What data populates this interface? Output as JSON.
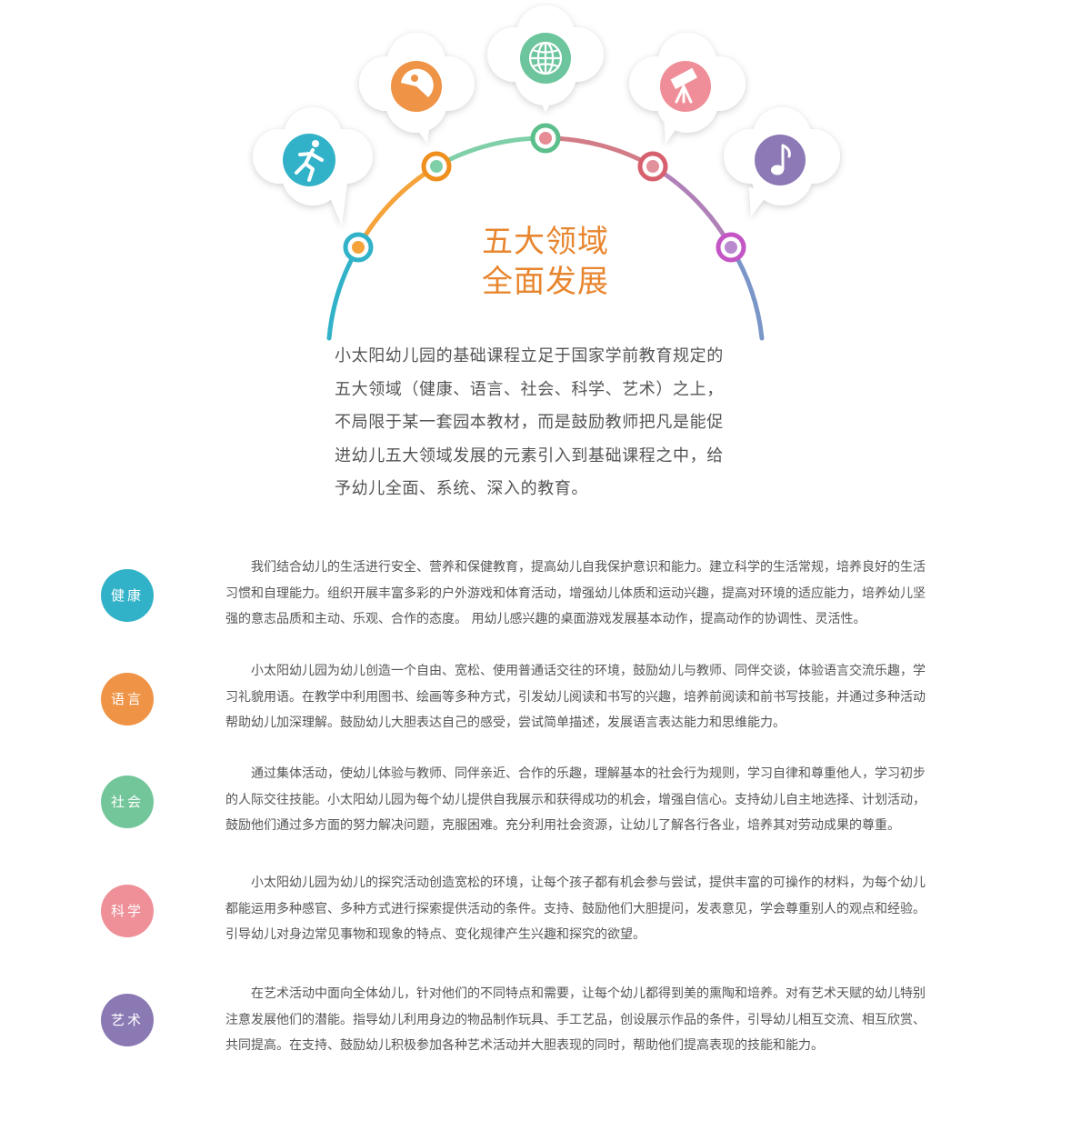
{
  "hero": {
    "title_line1": "五大领域",
    "title_line2": "全面发展"
  },
  "intro": {
    "lines": [
      "小太阳幼儿园的基础课程立足于国家学前教育规定的",
      "五大领域（健康、语言、社会、科学、艺术）之上，",
      "不局限于某一套园本教材，而是鼓励教师把凡是能促",
      "进幼儿五大领域发展的元素引入到基础课程之中，给",
      "予幼儿全面、系统、深入的教育。"
    ]
  },
  "clouds": [
    {
      "icon": "running-person-icon",
      "color": "#31b2c8"
    },
    {
      "icon": "pacman-face-icon",
      "color": "#ef9346"
    },
    {
      "icon": "globe-icon",
      "color": "#6cc59d"
    },
    {
      "icon": "telescope-icon",
      "color": "#ef8e98"
    },
    {
      "icon": "music-note-icon",
      "color": "#8c79b5"
    }
  ],
  "domains": [
    {
      "label": "健康",
      "color": "#31b2c8",
      "lines": [
        "我们结合幼儿的生活进行安全、营养和保健教育，提高幼儿自我保护意识和能力。建立科学的生活常规，培养良好的生活",
        "习惯和自理能力。组织开展丰富多彩的户外游戏和体育活动，增强幼儿体质和运动兴趣，提高对环境的适应能力，培养幼儿坚",
        "强的意志品质和主动、乐观、合作的态度。 用幼儿感兴趣的桌面游戏发展基本动作，提高动作的协调性、灵活性。"
      ]
    },
    {
      "label": "语言",
      "color": "#ef9346",
      "lines": [
        "小太阳幼儿园为幼儿创造一个自由、宽松、使用普通话交往的环境，鼓励幼儿与教师、同伴交谈，体验语言交流乐趣，学",
        "习礼貌用语。在教学中利用图书、绘画等多种方式，引发幼儿阅读和书写的兴趣，培养前阅读和前书写技能，并通过多种活动",
        "帮助幼儿加深理解。鼓励幼儿大胆表达自己的感受，尝试简单描述，发展语言表达能力和思维能力。"
      ]
    },
    {
      "label": "社会",
      "color": "#72c69a",
      "lines": [
        "通过集体活动，使幼儿体验与教师、同伴亲近、合作的乐趣，理解基本的社会行为规则，学习自律和尊重他人，学习初步",
        "的人际交往技能。小太阳幼儿园为每个幼儿提供自我展示和获得成功的机会，增强自信心。支持幼儿自主地选择、计划活动，",
        "鼓励他们通过多方面的努力解决问题，克服困难。充分利用社会资源，让幼儿了解各行各业，培养其对劳动成果的尊重。"
      ]
    },
    {
      "label": "科学",
      "color": "#ef8f98",
      "lines": [
        "小太阳幼儿园为幼儿的探究活动创造宽松的环境，让每个孩子都有机会参与尝试，提供丰富的可操作的材料，为每个幼儿",
        "都能运用多种感官、多种方式进行探索提供活动的条件。支持、鼓励他们大胆提问，发表意见，学会尊重别人的观点和经验。",
        "引导幼儿对身边常见事物和现象的特点、变化规律产生兴趣和探究的欲望。"
      ]
    },
    {
      "label": "艺术",
      "color": "#8b79b4",
      "lines": [
        "在艺术活动中面向全体幼儿，针对他们的不同特点和需要，让每个幼儿都得到美的熏陶和培养。对有艺术天赋的幼儿特别",
        "注意发展他们的潜能。指导幼儿利用身边的物品制作玩具、手工艺品，创设展示作品的条件，引导幼儿相互交流、相互欣赏、",
        "共同提高。在支持、鼓励幼儿积极参加各种艺术活动并大胆表现的同时，帮助他们提高表现的技能和能力。"
      ]
    }
  ]
}
